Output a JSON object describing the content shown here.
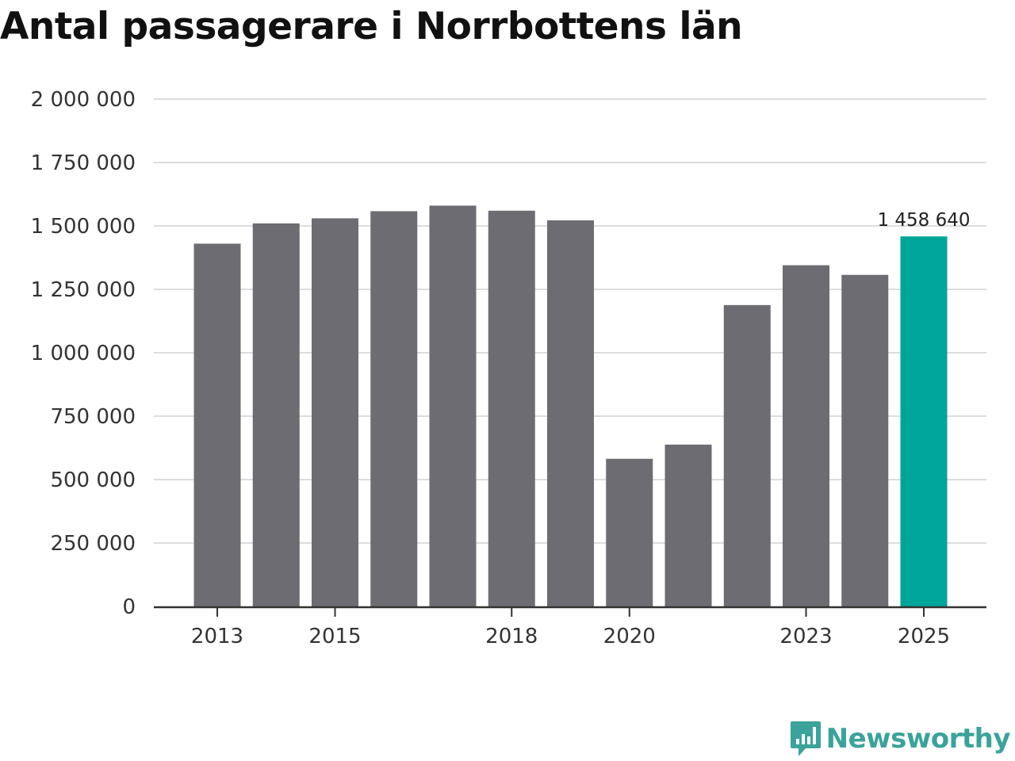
{
  "title": "Antal passagerare i Norrbottens län",
  "brand": {
    "name": "Newsworthy",
    "icon": "newsworthy-logo-icon",
    "color": "#3aa39a"
  },
  "colors": {
    "bar": "#6d6c72",
    "highlight": "#00a59a",
    "grid": "#dddddd",
    "axis": "#333333"
  },
  "chart_data": {
    "type": "bar",
    "title": "Antal passagerare i Norrbottens län",
    "xlabel": "",
    "ylabel": "",
    "categories": [
      "2013",
      "2014",
      "2015",
      "2016",
      "2017",
      "2018",
      "2019",
      "2020",
      "2021",
      "2022",
      "2023",
      "2024",
      "2025"
    ],
    "values": [
      1430000,
      1510000,
      1530000,
      1558000,
      1580000,
      1560000,
      1522000,
      582000,
      638000,
      1188000,
      1345000,
      1307000,
      1458640
    ],
    "highlight_index": 12,
    "ylim": [
      0,
      2000000
    ],
    "yticks": [
      0,
      250000,
      500000,
      750000,
      1000000,
      1250000,
      1500000,
      1750000,
      2000000
    ],
    "ytick_labels": [
      "0",
      "250 000",
      "500 000",
      "750 000",
      "1 000 000",
      "1 250 000",
      "1 500 000",
      "1 750 000",
      "2 000 000"
    ],
    "xtick_labels": [
      "2013",
      "",
      "2015",
      "",
      "",
      "2018",
      "",
      "2020",
      "",
      "",
      "2023",
      "",
      "2025"
    ],
    "annotations": [
      {
        "index": 12,
        "text": "1 458 640"
      }
    ],
    "grid": true,
    "legend": "none"
  }
}
